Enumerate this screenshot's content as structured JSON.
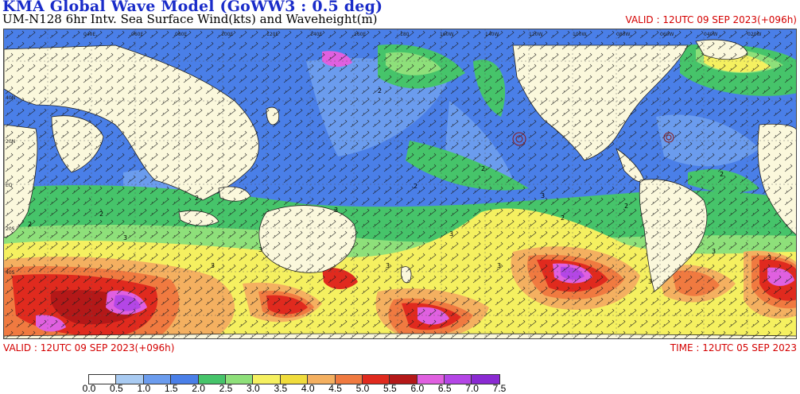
{
  "header": {
    "title": "KMA  Global Wave Model (GoWW3 : 0.5 deg)",
    "subtitle": "UM-N128  6hr Intv. Sea Surface Wind(kts) and Waveheight(m)",
    "valid_top": "VALID : 12UTC 09 SEP 2023(+096h)"
  },
  "footer": {
    "valid": "VALID : 12UTC 09 SEP 2023(+096h)",
    "time": "TIME : 12UTC 05 SEP 2023"
  },
  "map": {
    "lon_labels": [
      "040E",
      "060E",
      "080E",
      "100E",
      "120E",
      "140E",
      "160E",
      "180",
      "160W",
      "140W",
      "120W",
      "100W",
      "080W",
      "060W",
      "040W",
      "020W"
    ],
    "lat_labels": [
      "40N",
      "20N",
      "EQ",
      "20S",
      "40S"
    ],
    "contour_labels": [
      "3",
      "3",
      "3",
      "3",
      "3",
      "3",
      "2",
      "2",
      "2",
      "2",
      "2",
      "2",
      "3",
      "3",
      "3",
      "2",
      "2",
      "2",
      "3",
      "3"
    ]
  },
  "legend": {
    "levels": [
      "0.0",
      "0.5",
      "1.0",
      "1.5",
      "2.0",
      "2.5",
      "3.0",
      "3.5",
      "4.0",
      "4.5",
      "5.0",
      "5.5",
      "6.0",
      "6.5",
      "7.0",
      "7.5"
    ],
    "colors": [
      "#ffffff",
      "#a9cbf2",
      "#6b9cee",
      "#4a7fe8",
      "#46c46a",
      "#8ee07a",
      "#f5f060",
      "#f0dc3c",
      "#f4b060",
      "#f07a40",
      "#e02a1e",
      "#b41818",
      "#e060e0",
      "#b446e6",
      "#8a2ad2"
    ]
  }
}
